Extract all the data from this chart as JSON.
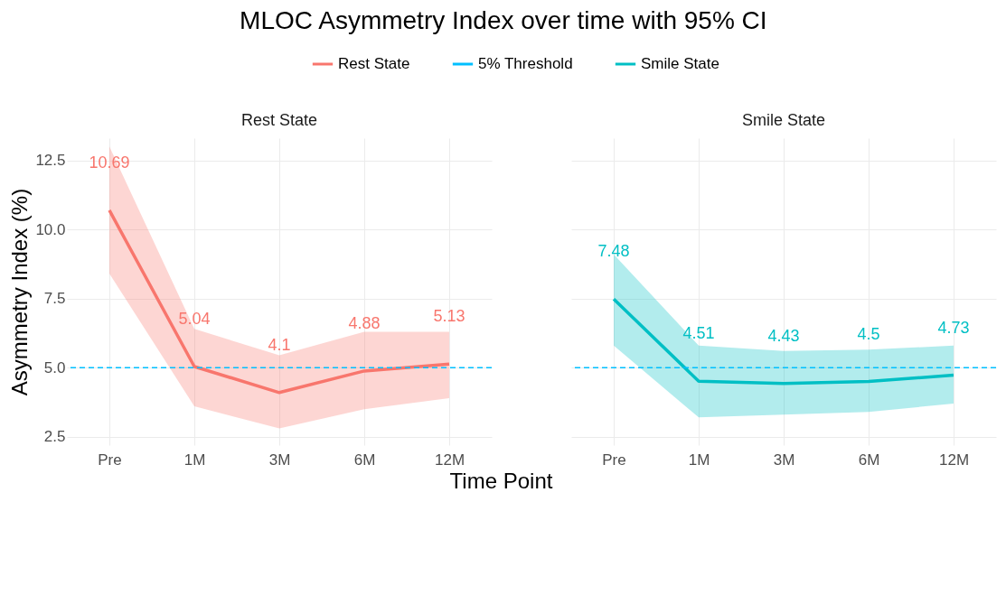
{
  "chart_data": [
    {
      "type": "line",
      "title": "MLOC Asymmetry Index over time with 95% CI",
      "subtitle": "Rest State",
      "xlabel": "Time Point",
      "ylabel": "Asymmetry Index (%)",
      "categories": [
        "Pre",
        "1M",
        "3M",
        "6M",
        "12M"
      ],
      "series": [
        {
          "name": "Rest State",
          "color": "#f8766d",
          "values": [
            10.69,
            5.04,
            4.1,
            4.88,
            5.13
          ],
          "lower": [
            8.4,
            3.6,
            2.8,
            3.5,
            3.9
          ],
          "upper": [
            13.0,
            6.4,
            5.45,
            6.3,
            6.3
          ]
        }
      ],
      "ylim": [
        2.2,
        13.3
      ],
      "yticks": [
        2.5,
        {
          "value": 5,
          "label": "5.0"
        },
        7.5,
        {
          "value": 10,
          "label": "10.0"
        },
        12.5
      ],
      "grid": true,
      "legend": "top",
      "data_labels": true,
      "ref_lines": [
        {
          "axis": "y",
          "value": 5,
          "label": "5% Threshold",
          "color": "#00bfff",
          "line_style": "dashed"
        }
      ]
    },
    {
      "type": "line",
      "subtitle": "Smile State",
      "categories": [
        "Pre",
        "1M",
        "3M",
        "6M",
        "12M"
      ],
      "series": [
        {
          "name": "Smile State",
          "color": "#00bfc4",
          "values": [
            7.48,
            4.51,
            4.43,
            4.5,
            4.73
          ],
          "lower": [
            5.8,
            3.2,
            3.3,
            3.4,
            3.7
          ],
          "upper": [
            9.1,
            5.8,
            5.6,
            5.65,
            5.8
          ]
        }
      ],
      "ylim": [
        2.2,
        13.3
      ],
      "yticks": [
        2.5,
        5,
        7.5,
        10,
        12.5
      ],
      "grid": true,
      "legend": "top",
      "data_labels": true,
      "tick_labels": "x",
      "ref_lines": [
        {
          "axis": "y",
          "value": 5,
          "color": "#00bfff",
          "line_style": "dashed"
        }
      ]
    }
  ]
}
